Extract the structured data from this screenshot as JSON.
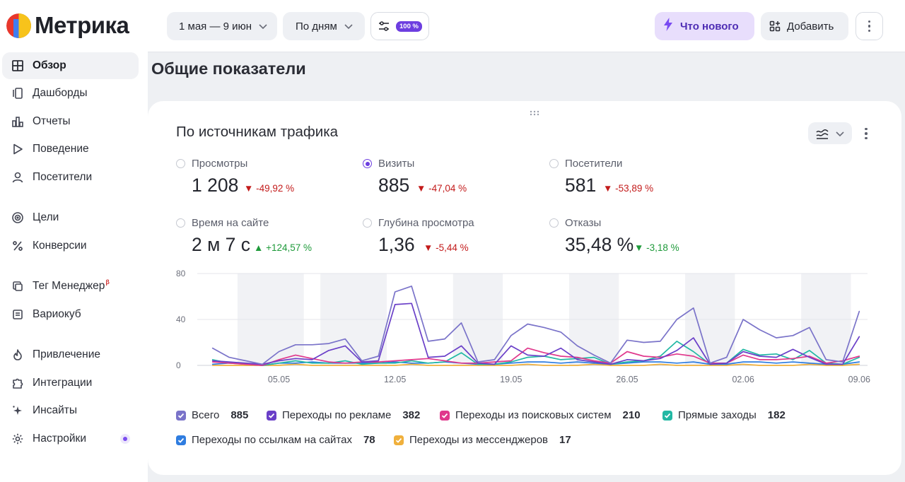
{
  "app": {
    "name": "Метрика"
  },
  "sidebar": {
    "items": [
      {
        "label": "Обзор",
        "icon": "grid-icon",
        "active": true
      },
      {
        "label": "Дашборды",
        "icon": "dashboards-icon"
      },
      {
        "label": "Отчеты",
        "icon": "bar-chart-icon"
      },
      {
        "label": "Поведение",
        "icon": "play-icon"
      },
      {
        "label": "Посетители",
        "icon": "user-icon"
      },
      {
        "label": "Цели",
        "icon": "target-icon"
      },
      {
        "label": "Конверсии",
        "icon": "percent-icon"
      },
      {
        "label": "Тег Менеджер",
        "icon": "tag-manager-icon",
        "badge": "β"
      },
      {
        "label": "Вариокуб",
        "icon": "variocube-icon"
      },
      {
        "label": "Привлечение",
        "icon": "flame-icon"
      },
      {
        "label": "Интеграции",
        "icon": "puzzle-icon"
      },
      {
        "label": "Инсайты",
        "icon": "sparkle-icon"
      },
      {
        "label": "Настройки",
        "icon": "gear-icon"
      }
    ]
  },
  "toolbar": {
    "date_range": "1 мая — 9 июн",
    "grouping": "По дням",
    "filter_badge": "100 %",
    "whats_new": "Что нового",
    "add": "Добавить"
  },
  "page": {
    "title": "Общие показатели"
  },
  "widget": {
    "title": "По источникам трафика",
    "metrics": [
      {
        "label": "Просмотры",
        "value": "1 208",
        "delta": "▼ -49,92 %",
        "trend": "down",
        "selected": false
      },
      {
        "label": "Визиты",
        "value": "885",
        "delta": "▼ -47,04 %",
        "trend": "down",
        "selected": true
      },
      {
        "label": "Посетители",
        "value": "581",
        "delta": "▼ -53,89 %",
        "trend": "down",
        "selected": false
      },
      {
        "label": "Время на сайте",
        "value": "2 м 7 с",
        "delta": "▲ +124,57 %",
        "trend": "up",
        "selected": false
      },
      {
        "label": "Глубина просмотра",
        "value": "1,36",
        "delta": "▼ -5,44 %",
        "trend": "down",
        "selected": false
      },
      {
        "label": "Отказы",
        "value": "35,48 %",
        "delta": "▼ -3,18 %",
        "trend": "down",
        "selected": false
      }
    ],
    "legend": [
      {
        "label": "Всего",
        "count": "885",
        "color": "#7a73c9"
      },
      {
        "label": "Переходы по рекламе",
        "count": "382",
        "color": "#6a3fc8"
      },
      {
        "label": "Переходы из поисковых систем",
        "count": "210",
        "color": "#e0388c"
      },
      {
        "label": "Прямые заходы",
        "count": "182",
        "color": "#22b8a4"
      },
      {
        "label": "Переходы по ссылкам на сайтах",
        "count": "78",
        "color": "#2f7de0"
      },
      {
        "label": "Переходы из мессенджеров",
        "count": "17",
        "color": "#f0b03c"
      }
    ]
  },
  "chart_data": {
    "type": "line",
    "x_ticks": [
      "05.05",
      "12.05",
      "19.05",
      "26.05",
      "02.06",
      "09.06"
    ],
    "y_ticks": [
      "80",
      "40",
      "0"
    ],
    "ylim": [
      0,
      80
    ],
    "x": [
      "01.05",
      "02.05",
      "03.05",
      "04.05",
      "05.05",
      "06.05",
      "07.05",
      "08.05",
      "09.05",
      "10.05",
      "11.05",
      "12.05",
      "13.05",
      "14.05",
      "15.05",
      "16.05",
      "17.05",
      "18.05",
      "19.05",
      "20.05",
      "21.05",
      "22.05",
      "23.05",
      "24.05",
      "25.05",
      "26.05",
      "27.05",
      "28.05",
      "29.05",
      "30.05",
      "31.05",
      "01.06",
      "02.06",
      "03.06",
      "04.06",
      "05.06",
      "06.06",
      "07.06",
      "08.06",
      "09.06"
    ],
    "weekend_bands": [
      [
        "03.05",
        "06.05"
      ],
      [
        "08.05",
        "11.05"
      ],
      [
        "16.05",
        "18.05"
      ],
      [
        "23.05",
        "25.05"
      ],
      [
        "30.05",
        "01.06"
      ],
      [
        "06.06",
        "08.06"
      ]
    ],
    "series": [
      {
        "name": "Всего",
        "color": "#7a73c9",
        "values": [
          15,
          7,
          4,
          1,
          12,
          18,
          18,
          19,
          23,
          4,
          8,
          64,
          69,
          21,
          23,
          37,
          3,
          5,
          26,
          36,
          33,
          29,
          17,
          9,
          2,
          22,
          20,
          21,
          40,
          50,
          2,
          7,
          40,
          31,
          24,
          26,
          33,
          5,
          3,
          47
        ]
      },
      {
        "name": "Переходы по рекламе",
        "color": "#6a3fc8",
        "values": [
          4,
          3,
          2,
          1,
          4,
          6,
          5,
          13,
          17,
          3,
          4,
          53,
          54,
          7,
          8,
          17,
          2,
          1,
          17,
          9,
          8,
          15,
          5,
          3,
          1,
          5,
          4,
          6,
          13,
          24,
          1,
          2,
          12,
          8,
          7,
          14,
          7,
          1,
          1,
          25
        ]
      },
      {
        "name": "Переходы из поисковых систем",
        "color": "#e0388c",
        "values": [
          3,
          2,
          1,
          0,
          5,
          9,
          6,
          3,
          2,
          3,
          3,
          4,
          5,
          6,
          4,
          2,
          2,
          3,
          4,
          15,
          11,
          8,
          7,
          4,
          2,
          12,
          8,
          7,
          10,
          8,
          2,
          2,
          9,
          5,
          5,
          6,
          8,
          2,
          4,
          8
        ]
      },
      {
        "name": "Прямые заходы",
        "color": "#22b8a4",
        "values": [
          5,
          2,
          2,
          0,
          2,
          4,
          2,
          2,
          4,
          1,
          2,
          2,
          4,
          2,
          3,
          11,
          1,
          1,
          3,
          7,
          8,
          5,
          6,
          7,
          1,
          3,
          4,
          8,
          21,
          12,
          1,
          2,
          14,
          9,
          10,
          5,
          13,
          2,
          1,
          7
        ]
      },
      {
        "name": "Переходы по ссылкам на сайтах",
        "color": "#2f7de0",
        "values": [
          1,
          2,
          1,
          0,
          2,
          2,
          3,
          2,
          2,
          2,
          2,
          3,
          2,
          2,
          3,
          2,
          1,
          1,
          2,
          3,
          3,
          2,
          3,
          2,
          1,
          2,
          3,
          3,
          2,
          3,
          1,
          1,
          3,
          3,
          2,
          3,
          2,
          1,
          1,
          3
        ]
      },
      {
        "name": "Переходы из мессенджеров",
        "color": "#f0b03c",
        "values": [
          0,
          0,
          0,
          0,
          0,
          1,
          0,
          0,
          0,
          0,
          0,
          0,
          1,
          0,
          0,
          0,
          0,
          0,
          0,
          1,
          0,
          0,
          0,
          1,
          0,
          0,
          0,
          1,
          0,
          0,
          0,
          0,
          1,
          0,
          0,
          0,
          1,
          0,
          0,
          1
        ]
      }
    ]
  }
}
